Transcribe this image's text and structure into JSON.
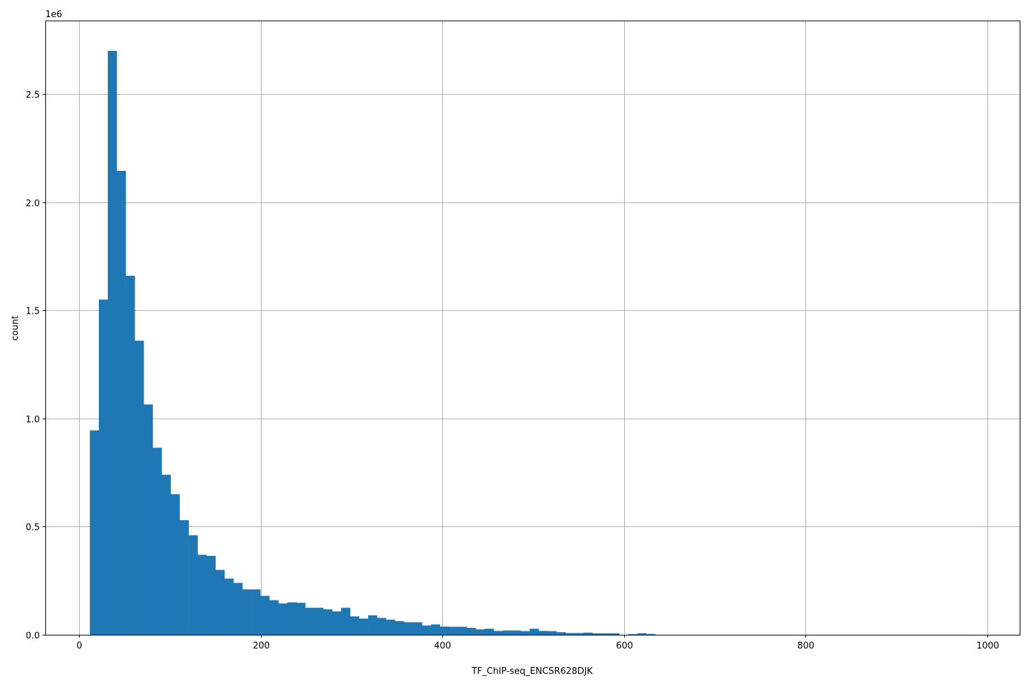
{
  "chart_data": {
    "type": "bar",
    "subtype": "histogram",
    "title": "",
    "xlabel": "TF_ChIP-seq_ENCSR628DJK",
    "ylabel": "count",
    "y_offset_label": "1e6",
    "xlim": [
      -37,
      1035.5
    ],
    "ylim": [
      0,
      2840000
    ],
    "grid": true,
    "bar_color": "#1f77b4",
    "grid_color": "#b0b0b0",
    "x_ticks": [
      "0",
      "200",
      "400",
      "600",
      "800",
      "1000"
    ],
    "x_tick_values": [
      0,
      200,
      400,
      600,
      800,
      1000
    ],
    "y_ticks": [
      "0.0",
      "0.5",
      "1.0",
      "1.5",
      "2.0",
      "2.5"
    ],
    "y_tick_values": [
      0,
      500000,
      1000000,
      1500000,
      2000000,
      2500000
    ],
    "bin_range": [
      12,
      1000
    ],
    "counts": [
      945000,
      1550000,
      2700000,
      2145000,
      1660000,
      1360000,
      1065000,
      865000,
      740000,
      650000,
      530000,
      460000,
      370000,
      365000,
      300000,
      260000,
      240000,
      210000,
      210000,
      180000,
      160000,
      145000,
      150000,
      148000,
      125000,
      125000,
      118000,
      108000,
      125000,
      85000,
      75000,
      90000,
      78000,
      70000,
      63000,
      58000,
      58000,
      43000,
      48000,
      38000,
      37000,
      37000,
      32000,
      25000,
      28000,
      18000,
      20000,
      20000,
      17000,
      28000,
      18000,
      17000,
      12000,
      8000,
      8000,
      10000,
      7000,
      7000,
      7000,
      0,
      3000,
      7000,
      4000,
      0,
      0,
      0,
      0,
      0,
      0,
      0,
      0,
      0,
      0,
      0,
      0,
      0,
      0,
      0,
      0,
      0,
      0,
      0,
      0,
      0,
      0,
      0,
      0,
      0,
      0,
      0,
      0,
      0,
      0,
      0,
      0,
      0,
      0,
      0,
      0,
      0
    ]
  }
}
